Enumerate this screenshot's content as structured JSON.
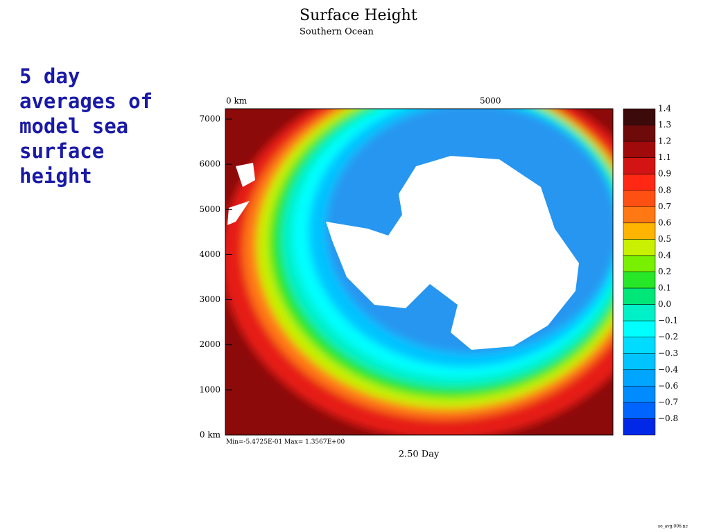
{
  "slide": {
    "side_text": "5 day averages of model sea surface height",
    "footer": "so_avg.006.nc"
  },
  "plot": {
    "title": "Surface Height",
    "subtitle": "Southern Ocean",
    "x_ticks": [
      "0 km",
      "5000"
    ],
    "y_ticks": [
      "7000",
      "6000",
      "5000",
      "4000",
      "3000",
      "2000",
      "1000",
      "0 km"
    ],
    "range_note": "Min=-5.4725E-01  Max= 1.3567E+00",
    "time_label": "2.50 Day"
  },
  "colorbar": {
    "levels": [
      {
        "label": "1.4",
        "color": "#3c0a0a"
      },
      {
        "label": "1.3",
        "color": "#6e0a0a"
      },
      {
        "label": "1.2",
        "color": "#a00a0a"
      },
      {
        "label": "1.1",
        "color": "#d21414"
      },
      {
        "label": "0.9",
        "color": "#ff2814"
      },
      {
        "label": "0.8",
        "color": "#ff5014"
      },
      {
        "label": "0.7",
        "color": "#ff7814"
      },
      {
        "label": "0.6",
        "color": "#ffb400"
      },
      {
        "label": "0.5",
        "color": "#c8f000"
      },
      {
        "label": "0.4",
        "color": "#78f000"
      },
      {
        "label": "0.2",
        "color": "#28e628"
      },
      {
        "label": "0.1",
        "color": "#00e678"
      },
      {
        "label": "0.0",
        "color": "#00f0c8"
      },
      {
        "label": "−0.1",
        "color": "#00ffff"
      },
      {
        "label": "−0.2",
        "color": "#00dcff"
      },
      {
        "label": "−0.3",
        "color": "#00c3ff"
      },
      {
        "label": "−0.4",
        "color": "#00a5ff"
      },
      {
        "label": "−0.6",
        "color": "#008cff"
      },
      {
        "label": "−0.7",
        "color": "#0064ff"
      },
      {
        "label": "−0.8",
        "color": "#0028e6"
      }
    ]
  }
}
